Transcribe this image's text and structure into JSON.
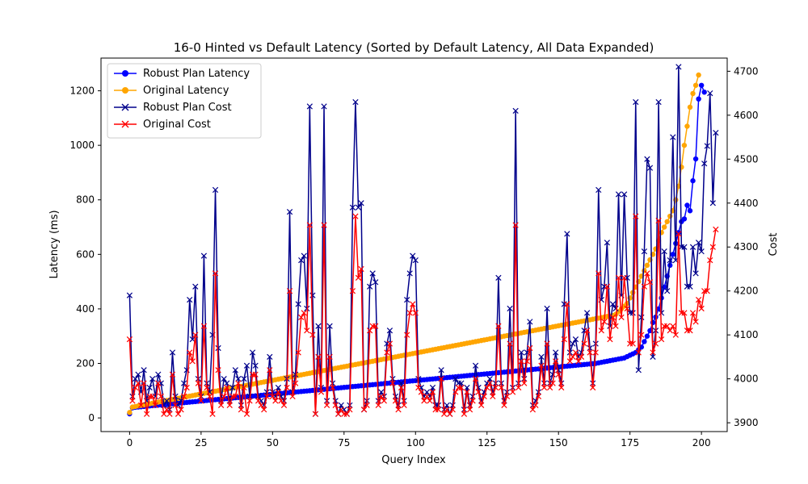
{
  "chart_data": {
    "type": "line",
    "title": "16-0 Hinted vs Default Latency (Sorted by Default Latency, All Data Expanded)",
    "xlabel": "Query Index",
    "ylabel": "Latency (ms)",
    "y2label": "Cost",
    "xlim": [
      -10,
      209
    ],
    "ylim": [
      -50,
      1320
    ],
    "y2lim": [
      3880,
      4730
    ],
    "xticks": [
      0,
      25,
      50,
      75,
      100,
      125,
      150,
      175,
      200
    ],
    "yticks": [
      0,
      200,
      400,
      600,
      800,
      1000,
      1200
    ],
    "y2ticks": [
      3900,
      4000,
      4100,
      4200,
      4300,
      4400,
      4500,
      4600,
      4700
    ],
    "legend_position": "upper-left",
    "grid": false,
    "series": [
      {
        "name": "Robust Plan Latency",
        "axis": "left",
        "color": "#0000ff",
        "marker": "circle",
        "values": [
          15,
          37,
          39,
          40,
          41,
          42,
          43,
          44,
          45,
          46,
          47,
          48,
          49,
          50,
          51,
          52,
          53,
          54,
          55,
          56,
          57,
          58,
          59,
          60,
          61,
          62,
          63,
          64,
          65,
          66,
          67,
          68,
          69,
          70,
          71,
          72,
          73,
          74,
          75,
          76,
          77,
          78,
          79,
          80,
          81,
          82,
          83,
          84,
          85,
          86,
          87,
          88,
          89,
          90,
          91,
          92,
          93,
          94,
          95,
          96,
          97,
          98,
          99,
          100,
          101,
          102,
          103,
          104,
          105,
          106,
          107,
          108,
          109,
          110,
          111,
          112,
          113,
          114,
          115,
          116,
          117,
          118,
          119,
          120,
          121,
          122,
          123,
          124,
          125,
          126,
          127,
          128,
          129,
          130,
          131,
          132,
          133,
          134,
          135,
          136,
          137,
          138,
          139,
          140,
          141,
          142,
          143,
          144,
          145,
          146,
          147,
          148,
          149,
          150,
          151,
          152,
          153,
          154,
          155,
          156,
          157,
          158,
          159,
          160,
          161,
          162,
          163,
          164,
          165,
          166,
          167,
          168,
          169,
          170,
          171,
          172,
          173,
          174,
          175,
          176,
          177,
          178,
          179,
          180,
          181,
          182,
          183,
          184,
          185,
          186,
          187,
          188,
          189,
          190,
          191,
          192,
          193,
          194,
          195,
          196,
          197,
          198,
          199,
          200,
          202,
          204,
          206,
          208,
          210,
          212,
          214,
          216,
          218,
          220,
          225,
          230,
          235,
          240,
          250,
          260,
          280,
          300,
          320,
          350,
          370,
          400,
          440,
          480,
          520,
          560,
          600,
          640,
          680,
          720,
          730,
          780,
          760,
          870,
          950,
          1170,
          1220,
          1195
        ]
      },
      {
        "name": "Original Latency",
        "axis": "left",
        "color": "#ffa500",
        "marker": "circle",
        "values": [
          20,
          40,
          42,
          44,
          46,
          48,
          50,
          52,
          54,
          56,
          58,
          60,
          62,
          64,
          66,
          68,
          70,
          72,
          74,
          76,
          78,
          80,
          82,
          84,
          86,
          88,
          90,
          92,
          94,
          96,
          98,
          100,
          102,
          104,
          106,
          108,
          110,
          112,
          114,
          116,
          118,
          120,
          122,
          124,
          126,
          128,
          130,
          132,
          134,
          136,
          138,
          140,
          142,
          144,
          146,
          148,
          150,
          152,
          154,
          156,
          158,
          160,
          162,
          164,
          166,
          168,
          170,
          172,
          174,
          176,
          178,
          180,
          182,
          184,
          186,
          188,
          190,
          192,
          194,
          196,
          198,
          200,
          202,
          204,
          206,
          208,
          210,
          212,
          214,
          216,
          218,
          220,
          222,
          224,
          226,
          228,
          230,
          232,
          234,
          236,
          238,
          240,
          242,
          244,
          246,
          248,
          250,
          252,
          254,
          256,
          258,
          260,
          262,
          264,
          266,
          268,
          270,
          272,
          274,
          276,
          278,
          280,
          282,
          284,
          286,
          288,
          290,
          292,
          294,
          296,
          298,
          300,
          302,
          304,
          306,
          308,
          310,
          312,
          314,
          316,
          318,
          320,
          322,
          324,
          326,
          328,
          330,
          332,
          334,
          336,
          338,
          340,
          342,
          344,
          346,
          348,
          350,
          352,
          354,
          356,
          358,
          360,
          362,
          364,
          366,
          368,
          370,
          372,
          374,
          376,
          380,
          390,
          400,
          410,
          420,
          440,
          460,
          480,
          500,
          520,
          540,
          560,
          580,
          600,
          620,
          650,
          680,
          700,
          720,
          740,
          760,
          800,
          850,
          920,
          1000,
          1070,
          1140,
          1190,
          1220,
          1258
        ]
      },
      {
        "name": "Robust Plan Cost",
        "axis": "right",
        "color": "#00008b",
        "marker": "x",
        "values": [
          4190,
          3960,
          4000,
          4010,
          3970,
          4020,
          3950,
          3980,
          4000,
          3960,
          4010,
          3990,
          3940,
          3950,
          3930,
          4060,
          3960,
          3940,
          3950,
          3990,
          4020,
          4180,
          4090,
          4210,
          4000,
          3960,
          4280,
          3990,
          3970,
          4100,
          4430,
          4070,
          3950,
          4000,
          3990,
          3950,
          3980,
          4020,
          4000,
          3940,
          4000,
          4030,
          3960,
          4060,
          4030,
          3960,
          3950,
          3940,
          3970,
          4050,
          3970,
          3960,
          3980,
          3960,
          3950,
          4000,
          4380,
          3970,
          4010,
          4170,
          4270,
          4280,
          4160,
          4620,
          4190,
          3920,
          4120,
          3980,
          4620,
          3950,
          4120,
          3990,
          3950,
          3920,
          3940,
          3930,
          3920,
          3940,
          4390,
          4630,
          4390,
          4400,
          3930,
          3950,
          4210,
          4240,
          4220,
          3950,
          3970,
          3960,
          4080,
          4110,
          4000,
          3960,
          3940,
          3990,
          3950,
          4180,
          4240,
          4280,
          4270,
          4000,
          3980,
          3960,
          3970,
          3960,
          3980,
          3940,
          3940,
          4020,
          3930,
          3940,
          3920,
          3940,
          4000,
          3990,
          3990,
          3930,
          3980,
          3940,
          3960,
          4030,
          3980,
          3950,
          3970,
          3990,
          4000,
          3970,
          3990,
          4230,
          3990,
          3950,
          3970,
          4160,
          3980,
          4610,
          3990,
          4060,
          4000,
          4060,
          4130,
          3940,
          3950,
          3970,
          4050,
          3990,
          4160,
          3990,
          4010,
          4060,
          4020,
          3990,
          4170,
          4330,
          4060,
          4080,
          4090,
          4050,
          4060,
          4110,
          4150,
          4070,
          3990,
          4080,
          4430,
          4180,
          4210,
          4310,
          4120,
          4170,
          4160,
          4420,
          4190,
          4420,
          4230,
          4150,
          4150,
          4630,
          4020,
          4140,
          4290,
          4500,
          4480,
          4050,
          4110,
          4630,
          4150,
          4290,
          4200,
          4270,
          4550,
          4270,
          4710,
          4300,
          4300,
          4210,
          4210,
          4300,
          4240,
          4310,
          4290,
          4490,
          4530,
          4650,
          4400,
          4560
        ]
      },
      {
        "name": "Original Cost",
        "axis": "right",
        "color": "#ff0000",
        "marker": "x",
        "values": [
          4090,
          3950,
          3980,
          3990,
          3940,
          3990,
          3920,
          3960,
          3960,
          3940,
          3990,
          3960,
          3920,
          3930,
          3920,
          4010,
          3940,
          3920,
          3930,
          3960,
          3980,
          4060,
          4040,
          4100,
          3990,
          3950,
          4120,
          3980,
          3960,
          3920,
          4240,
          4020,
          3940,
          3960,
          3980,
          3940,
          3960,
          3960,
          3990,
          3930,
          3980,
          3920,
          3950,
          4010,
          4010,
          3950,
          3940,
          3930,
          3960,
          4020,
          3960,
          3950,
          3970,
          3950,
          3940,
          3980,
          4200,
          3960,
          3990,
          4060,
          4140,
          4150,
          4110,
          4350,
          4100,
          3920,
          4050,
          3970,
          4350,
          3940,
          4050,
          3980,
          3940,
          3920,
          3930,
          3920,
          3920,
          3930,
          4200,
          4370,
          4230,
          4250,
          3930,
          3940,
          4110,
          4120,
          4120,
          3940,
          3960,
          3950,
          4060,
          4080,
          3990,
          3950,
          3930,
          3980,
          3940,
          4100,
          4150,
          4170,
          4150,
          3980,
          3970,
          3950,
          3960,
          3950,
          3970,
          3930,
          3930,
          4000,
          3920,
          3930,
          3920,
          3930,
          3970,
          3980,
          3980,
          3920,
          3970,
          3930,
          3950,
          4000,
          3970,
          3940,
          3960,
          3980,
          3990,
          3960,
          3980,
          4120,
          3980,
          3940,
          3960,
          4080,
          3970,
          4350,
          3980,
          4040,
          3990,
          4040,
          4070,
          3930,
          3940,
          3960,
          4030,
          3980,
          4080,
          3980,
          3990,
          4040,
          4010,
          3980,
          4090,
          4170,
          4040,
          4050,
          4060,
          4040,
          4050,
          4080,
          4110,
          4060,
          3980,
          4060,
          4240,
          4110,
          4130,
          4210,
          4090,
          4140,
          4120,
          4230,
          4140,
          4230,
          4160,
          4080,
          4080,
          4370,
          4060,
          4100,
          4210,
          4240,
          4220,
          4060,
          4080,
          4360,
          4090,
          4120,
          4120,
          4110,
          4120,
          4100,
          4330,
          4150,
          4150,
          4110,
          4110,
          4150,
          4130,
          4180,
          4160,
          4200,
          4200,
          4270,
          4300,
          4340
        ]
      }
    ]
  }
}
